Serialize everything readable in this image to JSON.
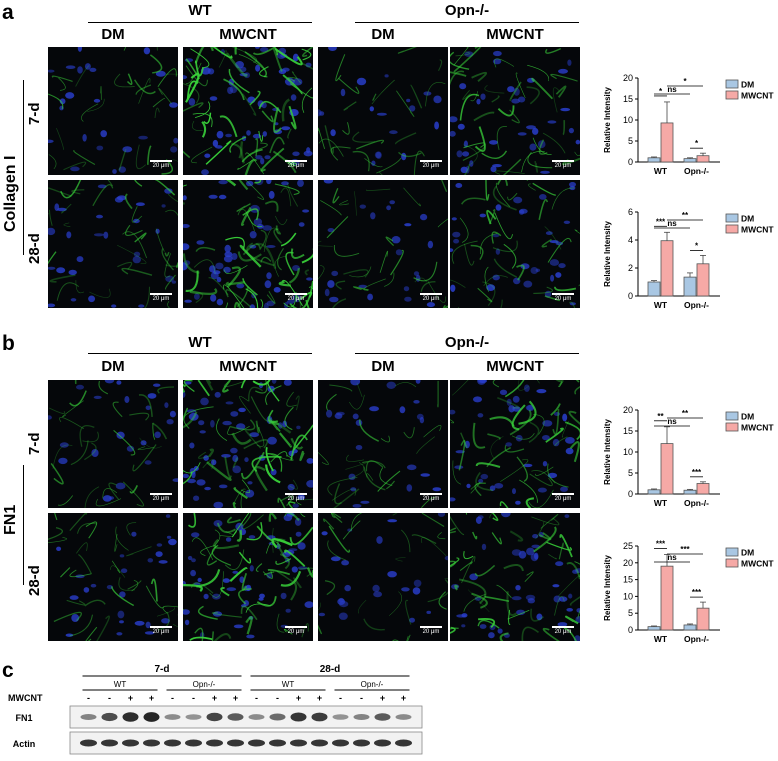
{
  "panel_a": {
    "letter": "a",
    "group_wt": "WT",
    "group_opn": "Opn-/-",
    "col_dm": "DM",
    "col_mwcnt": "MWCNT",
    "row_label": "Collagen I",
    "row_7d": "7-d",
    "row_28d": "28-d",
    "scale": "20 μm"
  },
  "panel_b": {
    "letter": "b",
    "group_wt": "WT",
    "group_opn": "Opn-/-",
    "col_dm": "DM",
    "col_mwcnt": "MWCNT",
    "row_label": "FN1",
    "row_7d": "7-d",
    "row_28d": "28-d",
    "scale": "20 μm"
  },
  "panel_c": {
    "letter": "c",
    "time_7d": "7-d",
    "time_28d": "28-d",
    "wt": "WT",
    "opn": "Opn-/-",
    "mwcnt_label": "MWCNT",
    "signs": [
      "-",
      "-",
      "+",
      "+",
      "-",
      "-",
      "+",
      "+",
      "-",
      "-",
      "+",
      "+",
      "-",
      "-",
      "+",
      "+"
    ],
    "fn1_label": "FN1",
    "actin_label": "Actin",
    "fn1_band_intensity": [
      0.35,
      0.7,
      0.9,
      0.95,
      0.3,
      0.25,
      0.75,
      0.6,
      0.3,
      0.5,
      0.85,
      0.8,
      0.25,
      0.35,
      0.6,
      0.3
    ],
    "actin_band_intensity": [
      0.85,
      0.85,
      0.85,
      0.85,
      0.85,
      0.85,
      0.85,
      0.85,
      0.85,
      0.85,
      0.85,
      0.85,
      0.85,
      0.85,
      0.85,
      0.85
    ]
  },
  "colors": {
    "dm": "#a9c7e3",
    "mwcnt": "#f6a9a6",
    "nuclei": "#2a3fd0",
    "stain": "#39d23a"
  },
  "chart_data": [
    {
      "type": "bar",
      "categories": [
        "WT",
        "Opn-/-"
      ],
      "series": [
        {
          "name": "DM",
          "values": [
            1,
            0.8
          ],
          "errors": [
            0.2,
            0.2
          ]
        },
        {
          "name": "MWCNT",
          "values": [
            9.3,
            1.5
          ],
          "errors": [
            5,
            0.6
          ]
        }
      ],
      "ylabel": "Relative Intensity",
      "ylim": [
        0,
        20
      ],
      "yticks": [
        "0",
        "5",
        "10",
        "15",
        "20"
      ],
      "legend": "top-right",
      "annotations": [
        {
          "text": "*",
          "from": "WT-DM",
          "to": "WT-MWCNT"
        },
        {
          "text": "ns",
          "from": "WT-DM",
          "to": "Opn-DM"
        },
        {
          "text": "*",
          "from": "WT-MWCNT",
          "to": "Opn-MWCNT"
        },
        {
          "text": "*",
          "from": "Opn-DM",
          "to": "Opn-MWCNT"
        }
      ]
    },
    {
      "type": "bar",
      "categories": [
        "WT",
        "Opn-/-"
      ],
      "series": [
        {
          "name": "DM",
          "values": [
            1,
            1.35
          ],
          "errors": [
            0.1,
            0.3
          ]
        },
        {
          "name": "MWCNT",
          "values": [
            3.95,
            2.3
          ],
          "errors": [
            0.6,
            0.6
          ]
        }
      ],
      "ylabel": "Relative Intensity",
      "ylim": [
        0,
        6
      ],
      "yticks": [
        "0",
        "2",
        "4",
        "6"
      ],
      "legend": "top-right",
      "annotations": [
        {
          "text": "***",
          "from": "WT-DM",
          "to": "WT-MWCNT"
        },
        {
          "text": "ns",
          "from": "WT-DM",
          "to": "Opn-DM"
        },
        {
          "text": "**",
          "from": "WT-MWCNT",
          "to": "Opn-MWCNT"
        },
        {
          "text": "*",
          "from": "Opn-DM",
          "to": "Opn-MWCNT"
        }
      ]
    },
    {
      "type": "bar",
      "categories": [
        "WT",
        "Opn-/-"
      ],
      "series": [
        {
          "name": "DM",
          "values": [
            1,
            0.9
          ],
          "errors": [
            0.2,
            0.2
          ]
        },
        {
          "name": "MWCNT",
          "values": [
            12,
            2.5
          ],
          "errors": [
            4,
            0.4
          ]
        }
      ],
      "ylabel": "Relative Intensity",
      "ylim": [
        0,
        20
      ],
      "yticks": [
        "0",
        "5",
        "10",
        "15",
        "20"
      ],
      "legend": "top-right",
      "annotations": [
        {
          "text": "**",
          "from": "WT-DM",
          "to": "WT-MWCNT"
        },
        {
          "text": "ns",
          "from": "WT-DM",
          "to": "Opn-DM"
        },
        {
          "text": "**",
          "from": "WT-MWCNT",
          "to": "Opn-MWCNT"
        },
        {
          "text": "***",
          "from": "Opn-DM",
          "to": "Opn-MWCNT"
        }
      ]
    },
    {
      "type": "bar",
      "categories": [
        "WT",
        "Opn-/-"
      ],
      "series": [
        {
          "name": "DM",
          "values": [
            1,
            1.5
          ],
          "errors": [
            0.2,
            0.3
          ]
        },
        {
          "name": "MWCNT",
          "values": [
            19,
            6.5
          ],
          "errors": [
            3.5,
            1.8
          ]
        }
      ],
      "ylabel": "Relative Intensity",
      "ylim": [
        0,
        25
      ],
      "yticks": [
        "0",
        "5",
        "10",
        "15",
        "20",
        "25"
      ],
      "legend": "top-right",
      "annotations": [
        {
          "text": "***",
          "from": "WT-DM",
          "to": "WT-MWCNT"
        },
        {
          "text": "ns",
          "from": "WT-DM",
          "to": "Opn-DM"
        },
        {
          "text": "***",
          "from": "WT-MWCNT",
          "to": "Opn-MWCNT"
        },
        {
          "text": "***",
          "from": "Opn-DM",
          "to": "Opn-MWCNT"
        }
      ]
    }
  ]
}
